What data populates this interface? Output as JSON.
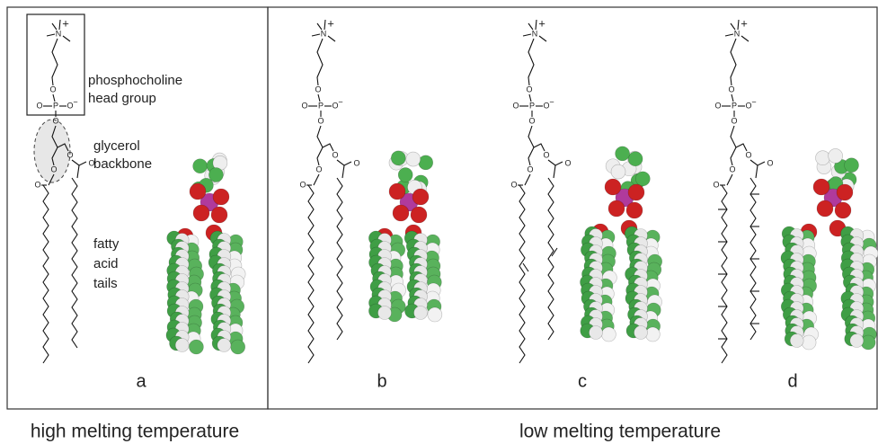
{
  "annotations": {
    "head_group": [
      "phosphocholine",
      "head group"
    ],
    "backbone": [
      "glycerol",
      "backbone"
    ],
    "tails": [
      "fatty",
      "acid",
      "tails"
    ]
  },
  "panels": [
    "a",
    "b",
    "c",
    "d"
  ],
  "captions": {
    "high": "high melting temperature",
    "low": "low melting temperature"
  },
  "atoms": {
    "nitrogen": "N",
    "charge": "+",
    "phosphorus": "P",
    "oxygen": "O",
    "minus": "−"
  }
}
